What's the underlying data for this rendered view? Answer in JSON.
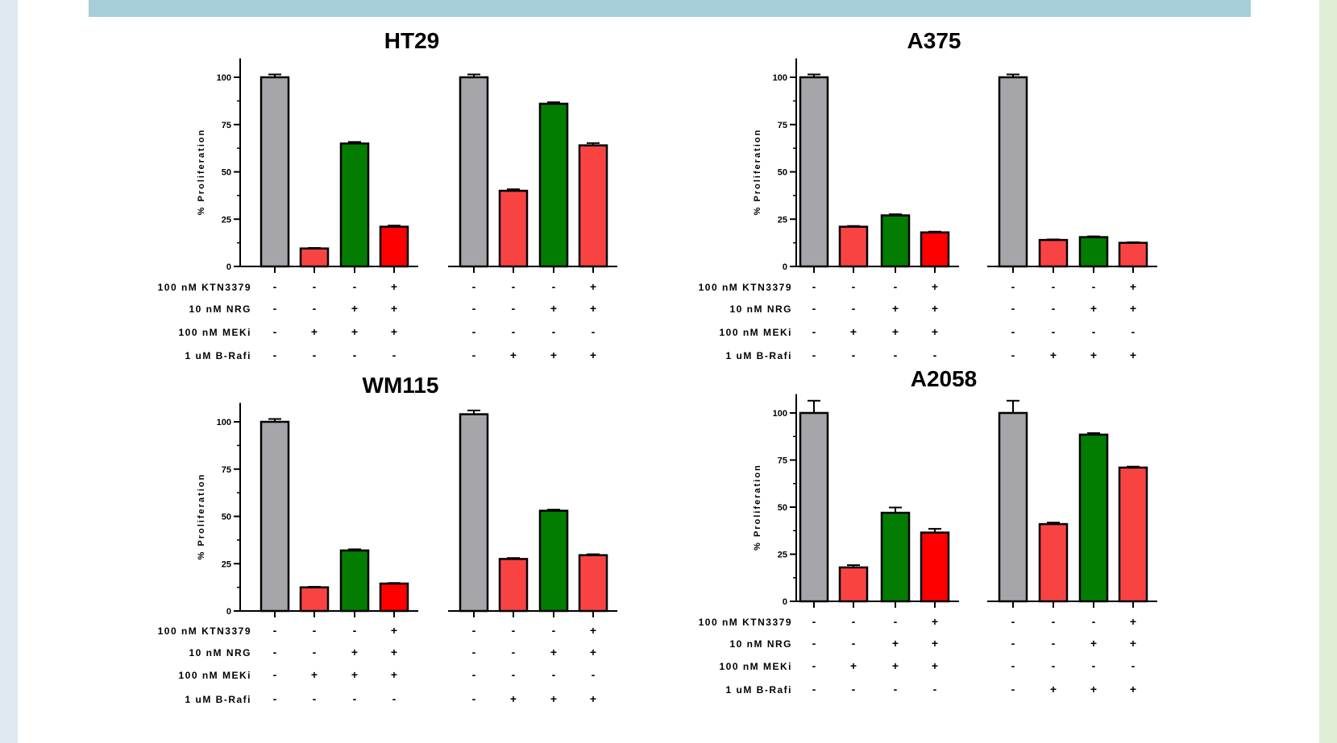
{
  "colors": {
    "side_left": "#dfe7ef",
    "side_right": "#dfeed6",
    "top_bar": "#a6cdd8",
    "gray": "#a6a5aa",
    "green": "#027c01",
    "light_red": "#f94343",
    "bright_red": "#fe0000"
  },
  "row_labels": [
    "100 nM KTN3379",
    "10 nM NRG",
    "100 nM MEKi",
    "1 uM B-Rafi"
  ],
  "treatment_signs": [
    [
      "-",
      "-",
      "-",
      "+",
      "-",
      "-",
      "-",
      "+"
    ],
    [
      "-",
      "-",
      "+",
      "+",
      "-",
      "-",
      "+",
      "+"
    ],
    [
      "-",
      "+",
      "+",
      "+",
      "-",
      "-",
      "-",
      "-"
    ],
    [
      "-",
      "-",
      "-",
      "-",
      "-",
      "+",
      "+",
      "+"
    ]
  ],
  "bar_colors": [
    "gray",
    "light_red",
    "green",
    "bright_red",
    "gray",
    "light_red",
    "green",
    "light_red"
  ],
  "chart_data": [
    {
      "type": "bar",
      "title": "HT29",
      "ylabel": "% Proliferation",
      "ylim": [
        0,
        110
      ],
      "yticks": [
        "0",
        "25",
        "50",
        "75",
        "100"
      ],
      "values": [
        100,
        9.5,
        65,
        21,
        100,
        40,
        86,
        64
      ],
      "errors": [
        1.5,
        0.3,
        0.8,
        0.6,
        1.5,
        0.8,
        0.8,
        1.2
      ]
    },
    {
      "type": "bar",
      "title": "A375",
      "ylabel": "% Proliferation",
      "ylim": [
        0,
        110
      ],
      "yticks": [
        "0",
        "25",
        "50",
        "75",
        "100"
      ],
      "values": [
        100,
        21,
        27,
        18,
        100,
        14,
        15.5,
        12.5
      ],
      "errors": [
        1.5,
        0.4,
        0.6,
        0.4,
        1.5,
        0.3,
        0.4,
        0.3
      ]
    },
    {
      "type": "bar",
      "title": "WM115",
      "ylabel": "% Proliferation",
      "ylim": [
        0,
        110
      ],
      "yticks": [
        "0",
        "25",
        "50",
        "75",
        "100"
      ],
      "values": [
        100,
        12.5,
        32,
        14.5,
        104,
        27.5,
        53,
        29.5
      ],
      "errors": [
        1.5,
        0.3,
        0.6,
        0.3,
        2,
        0.5,
        0.6,
        0.5
      ]
    },
    {
      "type": "bar",
      "title": "A2058",
      "ylabel": "% Proliferation",
      "ylim": [
        0,
        110
      ],
      "yticks": [
        "0",
        "25",
        "50",
        "75",
        "100"
      ],
      "values": [
        100,
        18,
        47,
        36.5,
        100,
        41,
        88.5,
        71
      ],
      "errors": [
        6.5,
        1.2,
        2.8,
        2.0,
        6.5,
        0.8,
        0.8,
        0.5
      ]
    }
  ]
}
